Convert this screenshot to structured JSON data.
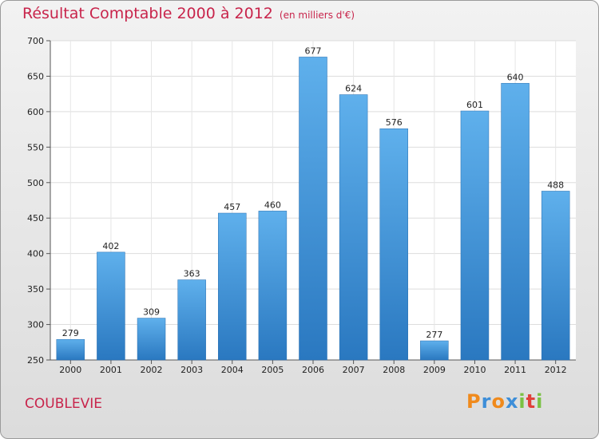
{
  "chart_data": {
    "type": "bar",
    "title": "Résultat Comptable 2000 à 2012",
    "subtitle": "(en milliers d'€)",
    "categories": [
      "2000",
      "2001",
      "2002",
      "2003",
      "2004",
      "2005",
      "2006",
      "2007",
      "2008",
      "2009",
      "2010",
      "2011",
      "2012"
    ],
    "values": [
      279,
      402,
      309,
      363,
      457,
      460,
      677,
      624,
      576,
      277,
      601,
      640,
      488
    ],
    "ylim": [
      250,
      700
    ],
    "yticks": [
      250,
      300,
      350,
      400,
      450,
      500,
      550,
      600,
      650,
      700
    ],
    "grid": true,
    "bar_color": "#3a8fd8"
  },
  "commune": "COUBLEVIE",
  "logo": {
    "letters": [
      "P",
      "r",
      "o",
      "x",
      "i",
      "t",
      "i"
    ],
    "colors": [
      "#f08a1c",
      "#3d8ed8",
      "#f08a1c",
      "#3d8ed8",
      "#7ac143",
      "#e0403a",
      "#7ac143"
    ]
  }
}
